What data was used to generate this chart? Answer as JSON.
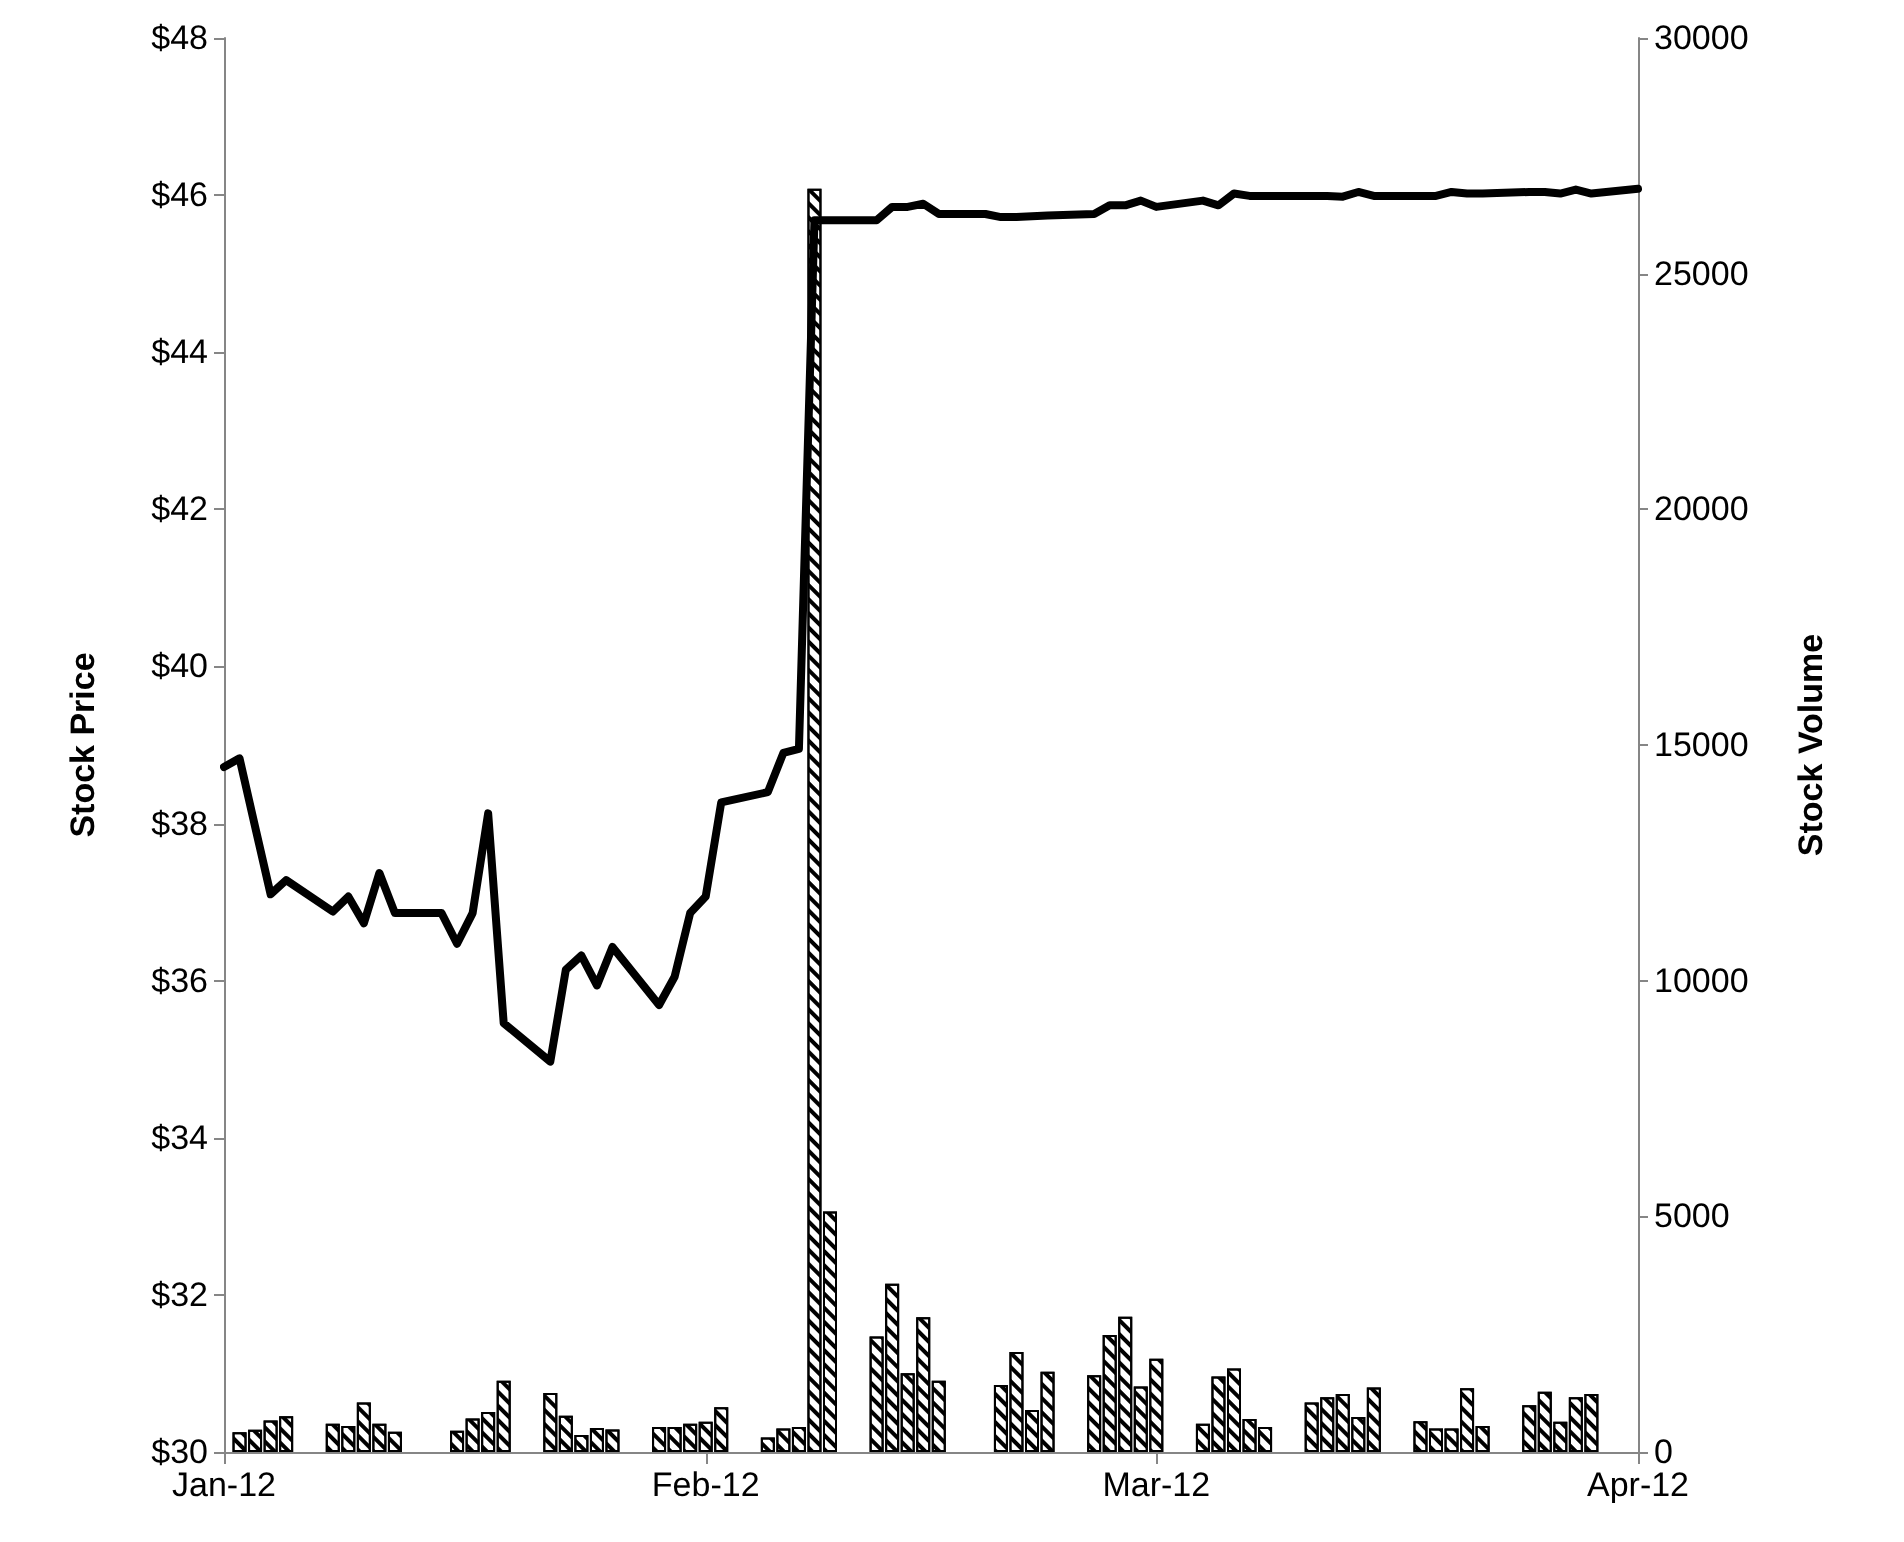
{
  "chart_data": {
    "type": "line",
    "ylabel": "Stock Price",
    "y2label": "Stock Volume",
    "xlim": [
      "2012-01-02",
      "2012-04-02"
    ],
    "xticks": [
      {
        "value": "2012-01-02",
        "label": "Jan-12"
      },
      {
        "value": "2012-02-02",
        "label": "Feb-12"
      },
      {
        "value": "2012-03-02",
        "label": "Mar-12"
      },
      {
        "value": "2012-04-02",
        "label": "Apr-12"
      }
    ],
    "ylim": [
      30,
      48
    ],
    "yticks": [
      {
        "value": 30,
        "label": "$30"
      },
      {
        "value": 32,
        "label": "$32"
      },
      {
        "value": 34,
        "label": "$34"
      },
      {
        "value": 36,
        "label": "$36"
      },
      {
        "value": 38,
        "label": "$38"
      },
      {
        "value": 40,
        "label": "$40"
      },
      {
        "value": 42,
        "label": "$42"
      },
      {
        "value": 44,
        "label": "$44"
      },
      {
        "value": 46,
        "label": "$46"
      },
      {
        "value": 48,
        "label": "$48"
      }
    ],
    "y2lim": [
      0,
      30000
    ],
    "y2ticks": [
      0,
      5000,
      10000,
      15000,
      20000,
      25000,
      30000
    ],
    "series": [
      {
        "type": "bar",
        "axis": "y2",
        "color": "#000000",
        "x": [
          "2012-01-03",
          "2012-01-04",
          "2012-01-05",
          "2012-01-06",
          "2012-01-09",
          "2012-01-10",
          "2012-01-11",
          "2012-01-12",
          "2012-01-13",
          "2012-01-17",
          "2012-01-18",
          "2012-01-19",
          "2012-01-20",
          "2012-01-23",
          "2012-01-24",
          "2012-01-25",
          "2012-01-26",
          "2012-01-27",
          "2012-01-30",
          "2012-01-31",
          "2012-02-01",
          "2012-02-02",
          "2012-02-03",
          "2012-02-06",
          "2012-02-07",
          "2012-02-08",
          "2012-02-09",
          "2012-02-10",
          "2012-02-13",
          "2012-02-14",
          "2012-02-15",
          "2012-02-16",
          "2012-02-17",
          "2012-02-21",
          "2012-02-22",
          "2012-02-23",
          "2012-02-24",
          "2012-02-27",
          "2012-02-28",
          "2012-02-29",
          "2012-03-01",
          "2012-03-02",
          "2012-03-05",
          "2012-03-06",
          "2012-03-07",
          "2012-03-08",
          "2012-03-09",
          "2012-03-12",
          "2012-03-13",
          "2012-03-14",
          "2012-03-15",
          "2012-03-16",
          "2012-03-19",
          "2012-03-20",
          "2012-03-21",
          "2012-03-22",
          "2012-03-23",
          "2012-03-26",
          "2012-03-27",
          "2012-03-28",
          "2012-03-29",
          "2012-03-30"
        ],
        "values": [
          420,
          470,
          670,
          760,
          600,
          550,
          1050,
          600,
          430,
          450,
          710,
          850,
          1510,
          1250,
          770,
          360,
          510,
          480,
          530,
          530,
          600,
          640,
          950,
          310,
          500,
          530,
          26800,
          5100,
          2450,
          3570,
          1670,
          2860,
          1510,
          1420,
          2120,
          890,
          1700,
          1630,
          2480,
          2870,
          1390,
          1980,
          600,
          1600,
          1770,
          700,
          530,
          1050,
          1160,
          1230,
          740,
          1370,
          650,
          500,
          500,
          1350,
          550,
          990,
          1280,
          640,
          1160,
          1230
        ]
      },
      {
        "color": "#000000",
        "x": [
          "2012-01-02",
          "2012-01-03",
          "2012-01-04",
          "2012-01-05",
          "2012-01-06",
          "2012-01-09",
          "2012-01-10",
          "2012-01-11",
          "2012-01-12",
          "2012-01-13",
          "2012-01-16",
          "2012-01-17",
          "2012-01-18",
          "2012-01-19",
          "2012-01-20",
          "2012-01-23",
          "2012-01-24",
          "2012-01-25",
          "2012-01-26",
          "2012-01-27",
          "2012-01-30",
          "2012-01-31",
          "2012-02-01",
          "2012-02-02",
          "2012-02-03",
          "2012-02-06",
          "2012-02-07",
          "2012-02-08",
          "2012-02-09",
          "2012-02-10",
          "2012-02-13",
          "2012-02-14",
          "2012-02-15",
          "2012-02-16",
          "2012-02-17",
          "2012-02-20",
          "2012-02-21",
          "2012-02-22",
          "2012-02-23",
          "2012-02-24",
          "2012-02-27",
          "2012-02-28",
          "2012-02-29",
          "2012-03-01",
          "2012-03-02",
          "2012-03-05",
          "2012-03-06",
          "2012-03-07",
          "2012-03-08",
          "2012-03-09",
          "2012-03-12",
          "2012-03-13",
          "2012-03-14",
          "2012-03-15",
          "2012-03-16",
          "2012-03-19",
          "2012-03-20",
          "2012-03-21",
          "2012-03-22",
          "2012-03-23",
          "2012-03-26",
          "2012-03-27",
          "2012-03-28",
          "2012-03-29",
          "2012-03-30",
          "2012-04-02"
        ],
        "values": [
          38.72,
          38.83,
          37.96,
          37.1,
          37.28,
          36.88,
          37.07,
          36.73,
          37.37,
          36.86,
          36.86,
          36.47,
          36.86,
          38.13,
          35.46,
          34.97,
          36.14,
          36.32,
          35.94,
          36.43,
          35.69,
          36.05,
          36.86,
          37.07,
          38.27,
          38.4,
          38.9,
          38.95,
          45.68,
          45.68,
          45.68,
          45.85,
          45.85,
          45.89,
          45.76,
          45.76,
          45.72,
          45.72,
          45.73,
          45.74,
          45.76,
          45.87,
          45.87,
          45.93,
          45.85,
          45.93,
          45.87,
          46.02,
          45.99,
          45.99,
          45.99,
          45.99,
          45.98,
          46.04,
          45.99,
          45.99,
          45.99,
          46.04,
          46.02,
          46.02,
          46.04,
          46.04,
          46.02,
          46.07,
          46.02,
          46.08
        ]
      }
    ]
  }
}
